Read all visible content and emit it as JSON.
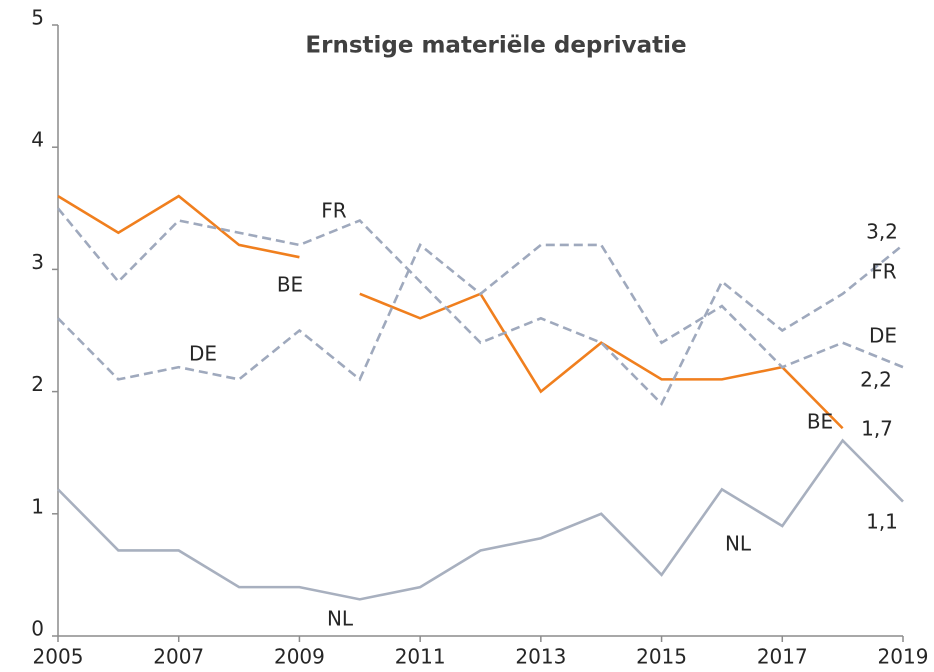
{
  "chart_data": {
    "type": "line",
    "title": "Ernstige materiële deprivatie",
    "x": [
      2005,
      2006,
      2007,
      2008,
      2009,
      2010,
      2011,
      2012,
      2013,
      2014,
      2015,
      2016,
      2017,
      2018,
      2019
    ],
    "xlim": [
      2005,
      2019
    ],
    "xticks": [
      2005,
      2007,
      2009,
      2011,
      2013,
      2015,
      2017,
      2019
    ],
    "ylim": [
      0,
      5
    ],
    "yticks": [
      0,
      1,
      2,
      3,
      4,
      5
    ],
    "series": [
      {
        "name": "BE",
        "color": "#f07f1e",
        "dash": false,
        "values": [
          3.6,
          3.3,
          3.6,
          3.2,
          3.1,
          null,
          null,
          null,
          null,
          null,
          null,
          null,
          null,
          null,
          null
        ]
      },
      {
        "name": "BE",
        "color": "#f07f1e",
        "dash": false,
        "values": [
          null,
          null,
          null,
          null,
          null,
          2.8,
          2.6,
          2.8,
          2.0,
          2.4,
          2.1,
          2.1,
          2.2,
          1.7,
          null
        ],
        "value_labels": [
          null,
          null,
          null,
          null,
          null,
          null,
          null,
          null,
          null,
          null,
          null,
          null,
          null,
          "1,7",
          null
        ]
      },
      {
        "name": "FR",
        "color": "#9fa9bd",
        "dash": true,
        "values": [
          3.5,
          2.9,
          3.4,
          3.3,
          3.2,
          3.4,
          2.9,
          2.4,
          2.6,
          2.4,
          1.9,
          2.9,
          2.5,
          2.8,
          3.2
        ],
        "value_labels": [
          null,
          null,
          null,
          null,
          null,
          null,
          null,
          null,
          null,
          null,
          null,
          null,
          null,
          null,
          "3,2"
        ]
      },
      {
        "name": "DE",
        "color": "#9fa9bd",
        "dash": true,
        "values": [
          2.6,
          2.1,
          2.2,
          2.1,
          2.5,
          2.1,
          3.2,
          2.8,
          3.2,
          3.2,
          2.4,
          2.7,
          2.2,
          2.4,
          2.2
        ],
        "value_labels": [
          null,
          null,
          null,
          null,
          null,
          null,
          null,
          null,
          null,
          null,
          null,
          null,
          null,
          null,
          "2,2"
        ]
      },
      {
        "name": "NL",
        "color": "#a8b0bf",
        "dash": false,
        "values": [
          1.2,
          0.7,
          0.7,
          0.4,
          0.4,
          0.3,
          0.4,
          0.7,
          0.8,
          1.0,
          0.5,
          1.2,
          0.9,
          1.6,
          1.1
        ],
        "value_labels": [
          null,
          null,
          null,
          null,
          null,
          null,
          null,
          null,
          null,
          null,
          null,
          null,
          null,
          null,
          "1,1"
        ]
      }
    ]
  }
}
